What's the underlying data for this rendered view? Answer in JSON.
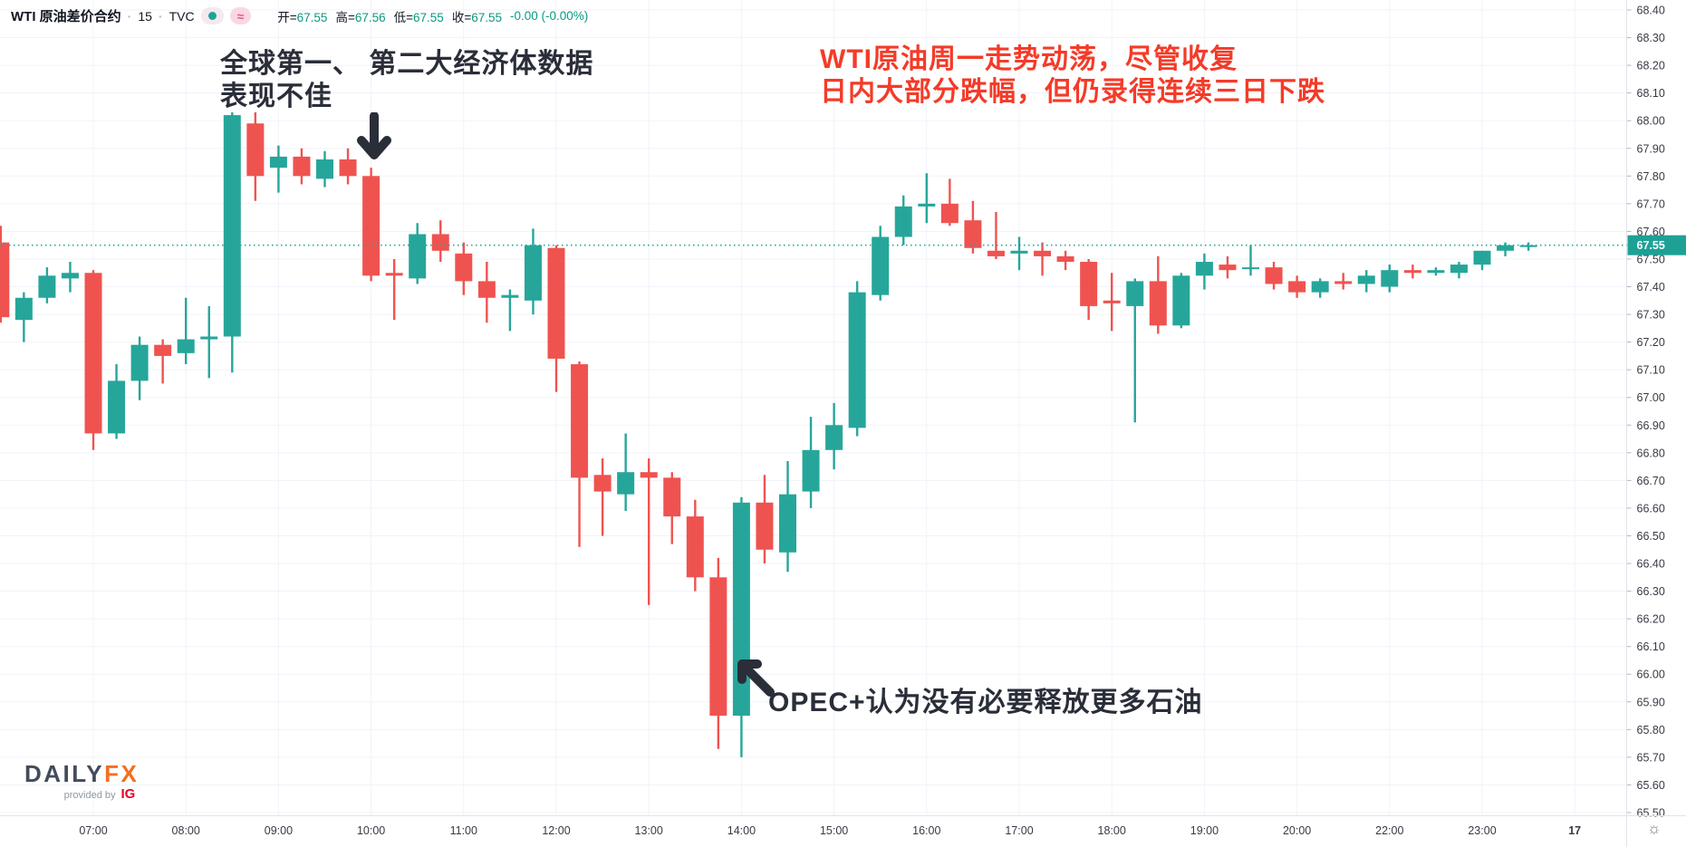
{
  "legend": {
    "symbol_title": "WTI 原油差价合约",
    "separator": "·",
    "interval": "15",
    "exchange": "TVC",
    "dot_glyph": "●",
    "approx_glyph": "≈",
    "ohlc": [
      {
        "label": "开=",
        "value": "67.55"
      },
      {
        "label": "高=",
        "value": "67.56"
      },
      {
        "label": "低=",
        "value": "67.55"
      },
      {
        "label": "收=",
        "value": "67.55"
      }
    ],
    "change": "-0.00 (-0.00%)"
  },
  "annotations": {
    "top_left_line1": "全球第一、 第二大经济体数据",
    "top_left_line2": "表现不佳",
    "top_right_line1": "WTI原油周一走势动荡，尽管收复",
    "top_right_line2": "日内大部分跌幅，但仍录得连续三日下跌",
    "bottom_text": "OPEC+认为没有必要释放更多石油"
  },
  "logo": {
    "daily": "DAILY",
    "fx": "FX",
    "provided_by": "provided by",
    "ig": "IG"
  },
  "gear_glyph": "☼",
  "colors": {
    "up": "#26a69a",
    "down": "#ef5350",
    "grid": "#f0f3fa",
    "axis_text": "#363a45",
    "axis_line": "#e0e3eb",
    "tick": "#b2b5be",
    "badge_bg": "#1da195",
    "badge_text": "#ffffff",
    "dotted_line": "#26a69a",
    "annotation_dark": "#2a2e39",
    "annotation_red": "#f43b28",
    "value_teal": "#089981"
  },
  "chart_data": {
    "type": "candlestick",
    "title": "WTI 原油差价合约 · 15 · TVC",
    "interval_minutes": 15,
    "current_price": "67.55",
    "current_price_value": 67.55,
    "ylim": [
      65.5,
      68.4
    ],
    "price_tick_step": 0.1,
    "price_ticks": [
      "68.40",
      "68.30",
      "68.20",
      "68.10",
      "68.00",
      "67.90",
      "67.80",
      "67.70",
      "67.60",
      "67.50",
      "67.40",
      "67.30",
      "67.20",
      "67.10",
      "67.00",
      "66.90",
      "66.80",
      "66.70",
      "66.60",
      "66.50",
      "66.40",
      "66.30",
      "66.20",
      "66.10",
      "66.00",
      "65.90",
      "65.80",
      "65.70",
      "65.60",
      "65.50"
    ],
    "time_ticks": [
      {
        "label": "07:00",
        "index": 4
      },
      {
        "label": "08:00",
        "index": 8
      },
      {
        "label": "09:00",
        "index": 12
      },
      {
        "label": "10:00",
        "index": 16
      },
      {
        "label": "11:00",
        "index": 20
      },
      {
        "label": "12:00",
        "index": 24
      },
      {
        "label": "13:00",
        "index": 28
      },
      {
        "label": "14:00",
        "index": 32
      },
      {
        "label": "15:00",
        "index": 36
      },
      {
        "label": "16:00",
        "index": 40
      },
      {
        "label": "17:00",
        "index": 44
      },
      {
        "label": "18:00",
        "index": 48
      },
      {
        "label": "19:00",
        "index": 52
      },
      {
        "label": "20:00",
        "index": 56
      },
      {
        "label": "22:00",
        "index": 60
      },
      {
        "label": "23:00",
        "index": 64
      },
      {
        "label": "17",
        "index": 68,
        "bold": true
      }
    ],
    "candles": [
      [
        "06:00",
        67.56,
        67.62,
        67.27,
        67.29
      ],
      [
        "06:15",
        67.28,
        67.38,
        67.2,
        67.36
      ],
      [
        "06:30",
        67.36,
        67.47,
        67.34,
        67.44
      ],
      [
        "06:45",
        67.43,
        67.49,
        67.38,
        67.45
      ],
      [
        "07:00",
        67.45,
        67.46,
        66.81,
        66.87
      ],
      [
        "07:15",
        66.87,
        67.12,
        66.85,
        67.06
      ],
      [
        "07:30",
        67.06,
        67.22,
        66.99,
        67.19
      ],
      [
        "07:45",
        67.19,
        67.21,
        67.05,
        67.15
      ],
      [
        "08:00",
        67.16,
        67.36,
        67.12,
        67.21
      ],
      [
        "08:15",
        67.21,
        67.33,
        67.07,
        67.22
      ],
      [
        "08:30",
        67.22,
        68.03,
        67.09,
        68.02
      ],
      [
        "08:45",
        67.99,
        68.03,
        67.71,
        67.8
      ],
      [
        "09:00",
        67.83,
        67.91,
        67.74,
        67.87
      ],
      [
        "09:15",
        67.87,
        67.9,
        67.77,
        67.8
      ],
      [
        "09:30",
        67.79,
        67.89,
        67.76,
        67.86
      ],
      [
        "09:45",
        67.86,
        67.9,
        67.77,
        67.8
      ],
      [
        "10:00",
        67.8,
        67.83,
        67.42,
        67.44
      ],
      [
        "10:15",
        67.45,
        67.5,
        67.28,
        67.44
      ],
      [
        "10:30",
        67.43,
        67.63,
        67.41,
        67.59
      ],
      [
        "10:45",
        67.59,
        67.64,
        67.49,
        67.53
      ],
      [
        "11:00",
        67.52,
        67.56,
        67.37,
        67.42
      ],
      [
        "11:15",
        67.42,
        67.49,
        67.27,
        67.36
      ],
      [
        "11:30",
        67.36,
        67.39,
        67.24,
        67.37
      ],
      [
        "11:45",
        67.35,
        67.61,
        67.3,
        67.55
      ],
      [
        "12:00",
        67.54,
        67.55,
        67.02,
        67.14
      ],
      [
        "12:15",
        67.12,
        67.13,
        66.46,
        66.71
      ],
      [
        "12:30",
        66.72,
        66.78,
        66.5,
        66.66
      ],
      [
        "12:45",
        66.65,
        66.87,
        66.59,
        66.73
      ],
      [
        "13:00",
        66.73,
        66.78,
        66.25,
        66.71
      ],
      [
        "13:15",
        66.71,
        66.73,
        66.47,
        66.57
      ],
      [
        "13:30",
        66.57,
        66.63,
        66.3,
        66.35
      ],
      [
        "13:45",
        66.35,
        66.42,
        65.73,
        65.85
      ],
      [
        "14:00",
        65.85,
        66.64,
        65.7,
        66.62
      ],
      [
        "14:15",
        66.62,
        66.72,
        66.4,
        66.45
      ],
      [
        "14:30",
        66.44,
        66.77,
        66.37,
        66.65
      ],
      [
        "14:45",
        66.66,
        66.93,
        66.6,
        66.81
      ],
      [
        "15:00",
        66.81,
        66.98,
        66.74,
        66.9
      ],
      [
        "15:15",
        66.89,
        67.42,
        66.86,
        67.38
      ],
      [
        "15:30",
        67.37,
        67.62,
        67.35,
        67.58
      ],
      [
        "15:45",
        67.58,
        67.73,
        67.55,
        67.69
      ],
      [
        "16:00",
        67.69,
        67.81,
        67.63,
        67.7
      ],
      [
        "16:15",
        67.7,
        67.79,
        67.62,
        67.63
      ],
      [
        "16:30",
        67.64,
        67.71,
        67.52,
        67.54
      ],
      [
        "16:45",
        67.53,
        67.67,
        67.5,
        67.51
      ],
      [
        "17:00",
        67.52,
        67.58,
        67.46,
        67.53
      ],
      [
        "17:15",
        67.53,
        67.56,
        67.44,
        67.51
      ],
      [
        "17:30",
        67.51,
        67.53,
        67.46,
        67.49
      ],
      [
        "17:45",
        67.49,
        67.5,
        67.28,
        67.33
      ],
      [
        "18:00",
        67.35,
        67.45,
        67.24,
        67.34
      ],
      [
        "18:15",
        67.33,
        67.43,
        66.91,
        67.42
      ],
      [
        "18:30",
        67.42,
        67.51,
        67.23,
        67.26
      ],
      [
        "18:45",
        67.26,
        67.45,
        67.25,
        67.44
      ],
      [
        "19:00",
        67.44,
        67.52,
        67.39,
        67.49
      ],
      [
        "19:15",
        67.48,
        67.51,
        67.43,
        67.46
      ],
      [
        "19:30",
        67.47,
        67.55,
        67.44,
        67.47
      ],
      [
        "19:45",
        67.47,
        67.49,
        67.39,
        67.41
      ],
      [
        "20:00",
        67.42,
        67.44,
        67.36,
        67.38
      ],
      [
        "20:15",
        67.38,
        67.43,
        67.36,
        67.42
      ],
      [
        "20:30",
        67.42,
        67.45,
        67.39,
        67.41
      ],
      [
        "20:45",
        67.41,
        67.46,
        67.38,
        67.44
      ],
      [
        "22:00",
        67.4,
        67.48,
        67.38,
        67.46
      ],
      [
        "22:15",
        67.46,
        67.48,
        67.43,
        67.45
      ],
      [
        "22:30",
        67.45,
        67.47,
        67.44,
        67.46
      ],
      [
        "22:45",
        67.45,
        67.49,
        67.43,
        67.48
      ],
      [
        "23:00",
        67.48,
        67.53,
        67.46,
        67.53
      ],
      [
        "23:15",
        67.53,
        67.56,
        67.51,
        67.55
      ],
      [
        "23:30",
        67.55,
        67.56,
        67.53,
        67.55
      ]
    ]
  }
}
